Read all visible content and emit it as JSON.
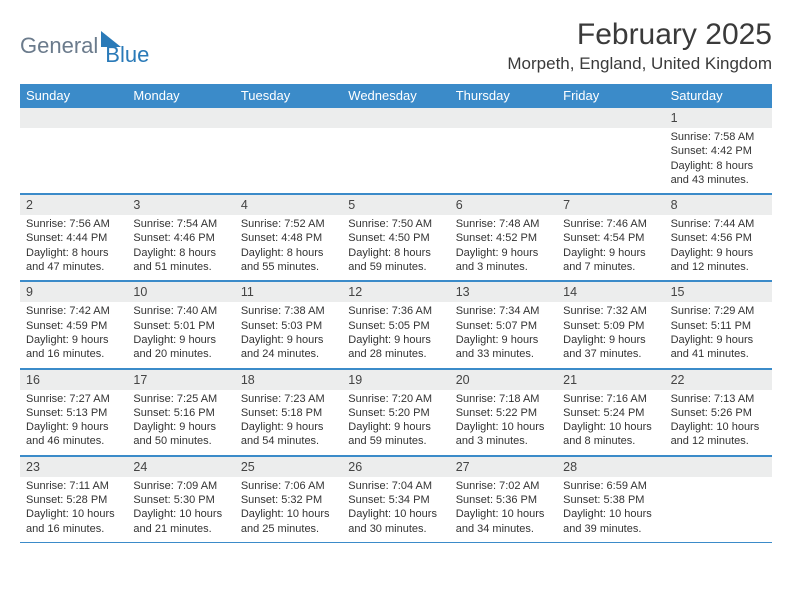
{
  "logo": {
    "part1": "General",
    "part2": "Blue"
  },
  "title": "February 2025",
  "location": "Morpeth, England, United Kingdom",
  "weekdays": [
    "Sunday",
    "Monday",
    "Tuesday",
    "Wednesday",
    "Thursday",
    "Friday",
    "Saturday"
  ],
  "weeks": [
    {
      "nums": [
        "",
        "",
        "",
        "",
        "",
        "",
        "1"
      ],
      "cells": [
        [],
        [],
        [],
        [],
        [],
        [],
        [
          "Sunrise: 7:58 AM",
          "Sunset: 4:42 PM",
          "Daylight: 8 hours and 43 minutes."
        ]
      ]
    },
    {
      "nums": [
        "2",
        "3",
        "4",
        "5",
        "6",
        "7",
        "8"
      ],
      "cells": [
        [
          "Sunrise: 7:56 AM",
          "Sunset: 4:44 PM",
          "Daylight: 8 hours and 47 minutes."
        ],
        [
          "Sunrise: 7:54 AM",
          "Sunset: 4:46 PM",
          "Daylight: 8 hours and 51 minutes."
        ],
        [
          "Sunrise: 7:52 AM",
          "Sunset: 4:48 PM",
          "Daylight: 8 hours and 55 minutes."
        ],
        [
          "Sunrise: 7:50 AM",
          "Sunset: 4:50 PM",
          "Daylight: 8 hours and 59 minutes."
        ],
        [
          "Sunrise: 7:48 AM",
          "Sunset: 4:52 PM",
          "Daylight: 9 hours and 3 minutes."
        ],
        [
          "Sunrise: 7:46 AM",
          "Sunset: 4:54 PM",
          "Daylight: 9 hours and 7 minutes."
        ],
        [
          "Sunrise: 7:44 AM",
          "Sunset: 4:56 PM",
          "Daylight: 9 hours and 12 minutes."
        ]
      ]
    },
    {
      "nums": [
        "9",
        "10",
        "11",
        "12",
        "13",
        "14",
        "15"
      ],
      "cells": [
        [
          "Sunrise: 7:42 AM",
          "Sunset: 4:59 PM",
          "Daylight: 9 hours and 16 minutes."
        ],
        [
          "Sunrise: 7:40 AM",
          "Sunset: 5:01 PM",
          "Daylight: 9 hours and 20 minutes."
        ],
        [
          "Sunrise: 7:38 AM",
          "Sunset: 5:03 PM",
          "Daylight: 9 hours and 24 minutes."
        ],
        [
          "Sunrise: 7:36 AM",
          "Sunset: 5:05 PM",
          "Daylight: 9 hours and 28 minutes."
        ],
        [
          "Sunrise: 7:34 AM",
          "Sunset: 5:07 PM",
          "Daylight: 9 hours and 33 minutes."
        ],
        [
          "Sunrise: 7:32 AM",
          "Sunset: 5:09 PM",
          "Daylight: 9 hours and 37 minutes."
        ],
        [
          "Sunrise: 7:29 AM",
          "Sunset: 5:11 PM",
          "Daylight: 9 hours and 41 minutes."
        ]
      ]
    },
    {
      "nums": [
        "16",
        "17",
        "18",
        "19",
        "20",
        "21",
        "22"
      ],
      "cells": [
        [
          "Sunrise: 7:27 AM",
          "Sunset: 5:13 PM",
          "Daylight: 9 hours and 46 minutes."
        ],
        [
          "Sunrise: 7:25 AM",
          "Sunset: 5:16 PM",
          "Daylight: 9 hours and 50 minutes."
        ],
        [
          "Sunrise: 7:23 AM",
          "Sunset: 5:18 PM",
          "Daylight: 9 hours and 54 minutes."
        ],
        [
          "Sunrise: 7:20 AM",
          "Sunset: 5:20 PM",
          "Daylight: 9 hours and 59 minutes."
        ],
        [
          "Sunrise: 7:18 AM",
          "Sunset: 5:22 PM",
          "Daylight: 10 hours and 3 minutes."
        ],
        [
          "Sunrise: 7:16 AM",
          "Sunset: 5:24 PM",
          "Daylight: 10 hours and 8 minutes."
        ],
        [
          "Sunrise: 7:13 AM",
          "Sunset: 5:26 PM",
          "Daylight: 10 hours and 12 minutes."
        ]
      ]
    },
    {
      "nums": [
        "23",
        "24",
        "25",
        "26",
        "27",
        "28",
        ""
      ],
      "cells": [
        [
          "Sunrise: 7:11 AM",
          "Sunset: 5:28 PM",
          "Daylight: 10 hours and 16 minutes."
        ],
        [
          "Sunrise: 7:09 AM",
          "Sunset: 5:30 PM",
          "Daylight: 10 hours and 21 minutes."
        ],
        [
          "Sunrise: 7:06 AM",
          "Sunset: 5:32 PM",
          "Daylight: 10 hours and 25 minutes."
        ],
        [
          "Sunrise: 7:04 AM",
          "Sunset: 5:34 PM",
          "Daylight: 10 hours and 30 minutes."
        ],
        [
          "Sunrise: 7:02 AM",
          "Sunset: 5:36 PM",
          "Daylight: 10 hours and 34 minutes."
        ],
        [
          "Sunrise: 6:59 AM",
          "Sunset: 5:38 PM",
          "Daylight: 10 hours and 39 minutes."
        ],
        []
      ]
    }
  ],
  "colors": {
    "header_bg": "#3b8bc9",
    "daynum_bg": "#eceded",
    "border": "#3b8bc9",
    "text": "#333333",
    "logo_gray": "#6b7b8c",
    "logo_blue": "#2a7ab8"
  }
}
